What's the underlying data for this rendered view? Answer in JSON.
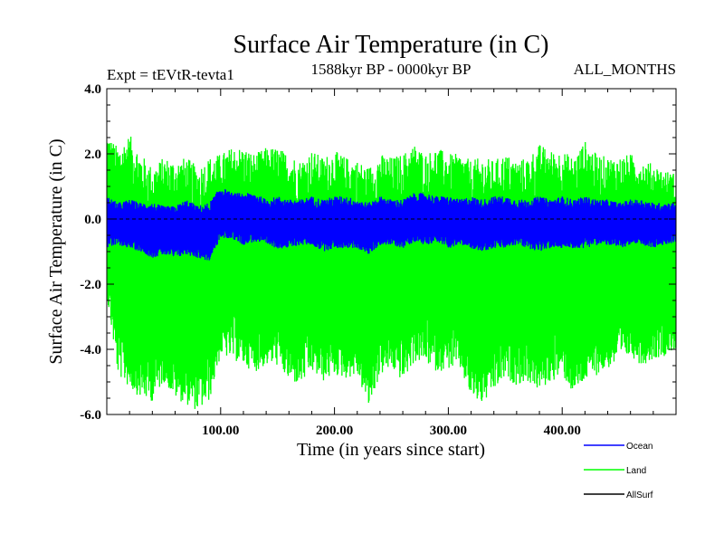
{
  "chart_data": {
    "type": "line",
    "title": "Surface Air Temperature (in C)",
    "expt_label": "Expt = tEVtR-tevta1",
    "period_label": "1588kyr BP - 0000kyr BP",
    "months_label": "ALL_MONTHS",
    "xlabel": "Time (in years since start)",
    "ylabel": "Surface Air Temperature (in C)",
    "xlim": [
      0,
      500
    ],
    "ylim": [
      -6.0,
      4.0
    ],
    "x_ticks": [
      100,
      200,
      300,
      400
    ],
    "x_tick_labels": [
      "100.00",
      "200.00",
      "300.00",
      "400.00"
    ],
    "y_ticks": [
      -6.0,
      -4.0,
      -2.0,
      0.0,
      2.0,
      4.0
    ],
    "y_tick_labels": [
      "-6.0",
      "-4.0",
      "-2.0",
      "0.0",
      "2.0",
      "4.0"
    ],
    "reference_line": 0.0,
    "series": [
      {
        "name": "Land",
        "color": "#00ff00",
        "values": [
          [
            0,
            -2.4,
            2.6
          ],
          [
            10,
            -4.8,
            2.2
          ],
          [
            20,
            -5.2,
            2.6
          ],
          [
            30,
            -5.5,
            2.0
          ],
          [
            40,
            -5.6,
            1.6
          ],
          [
            50,
            -5.0,
            1.9
          ],
          [
            60,
            -5.5,
            1.8
          ],
          [
            70,
            -5.7,
            1.9
          ],
          [
            80,
            -5.9,
            1.6
          ],
          [
            90,
            -5.6,
            1.9
          ],
          [
            100,
            -4.2,
            2.0
          ],
          [
            110,
            -4.3,
            2.2
          ],
          [
            120,
            -4.5,
            2.2
          ],
          [
            130,
            -4.7,
            2.0
          ],
          [
            140,
            -4.5,
            2.2
          ],
          [
            150,
            -4.5,
            2.2
          ],
          [
            160,
            -5.0,
            2.0
          ],
          [
            170,
            -5.1,
            1.8
          ],
          [
            180,
            -4.7,
            2.1
          ],
          [
            190,
            -5.0,
            1.9
          ],
          [
            200,
            -4.8,
            2.1
          ],
          [
            210,
            -4.9,
            1.9
          ],
          [
            220,
            -4.8,
            1.8
          ],
          [
            230,
            -5.8,
            1.6
          ],
          [
            240,
            -4.8,
            2.0
          ],
          [
            250,
            -4.6,
            1.9
          ],
          [
            260,
            -5.0,
            2.0
          ],
          [
            270,
            -4.4,
            2.3
          ],
          [
            280,
            -4.4,
            2.0
          ],
          [
            290,
            -4.7,
            2.2
          ],
          [
            300,
            -4.6,
            2.0
          ],
          [
            310,
            -4.6,
            2.0
          ],
          [
            320,
            -5.5,
            1.8
          ],
          [
            330,
            -5.7,
            1.9
          ],
          [
            340,
            -5.3,
            1.8
          ],
          [
            350,
            -4.9,
            2.0
          ],
          [
            360,
            -5.1,
            1.8
          ],
          [
            370,
            -5.0,
            1.9
          ],
          [
            380,
            -5.3,
            2.3
          ],
          [
            390,
            -5.0,
            2.1
          ],
          [
            400,
            -4.8,
            2.1
          ],
          [
            410,
            -5.4,
            1.9
          ],
          [
            420,
            -5.0,
            2.4
          ],
          [
            430,
            -4.8,
            2.0
          ],
          [
            440,
            -4.6,
            1.9
          ],
          [
            450,
            -4.4,
            1.9
          ],
          [
            460,
            -4.2,
            2.0
          ],
          [
            470,
            -4.5,
            1.8
          ],
          [
            480,
            -4.3,
            1.7
          ],
          [
            490,
            -4.2,
            1.5
          ],
          [
            500,
            -4.0,
            1.4
          ]
        ]
      },
      {
        "name": "Ocean",
        "color": "#0000ff",
        "values": [
          [
            0,
            -0.9,
            0.7
          ],
          [
            10,
            -0.8,
            0.5
          ],
          [
            20,
            -0.9,
            0.6
          ],
          [
            30,
            -1.0,
            0.5
          ],
          [
            40,
            -1.2,
            0.5
          ],
          [
            50,
            -1.1,
            0.4
          ],
          [
            60,
            -1.2,
            0.4
          ],
          [
            70,
            -1.1,
            0.6
          ],
          [
            80,
            -1.2,
            0.4
          ],
          [
            90,
            -1.3,
            0.5
          ],
          [
            100,
            -0.6,
            1.0
          ],
          [
            110,
            -0.6,
            0.8
          ],
          [
            120,
            -0.8,
            0.8
          ],
          [
            130,
            -0.7,
            0.8
          ],
          [
            140,
            -0.8,
            0.6
          ],
          [
            150,
            -0.9,
            0.7
          ],
          [
            160,
            -0.9,
            0.6
          ],
          [
            170,
            -0.8,
            0.6
          ],
          [
            180,
            -0.8,
            0.7
          ],
          [
            190,
            -1.0,
            0.6
          ],
          [
            200,
            -0.9,
            0.7
          ],
          [
            210,
            -0.9,
            0.7
          ],
          [
            220,
            -0.9,
            0.6
          ],
          [
            230,
            -1.1,
            0.5
          ],
          [
            240,
            -0.8,
            0.7
          ],
          [
            250,
            -0.8,
            0.6
          ],
          [
            260,
            -0.9,
            0.6
          ],
          [
            270,
            -0.7,
            0.8
          ],
          [
            280,
            -0.8,
            0.8
          ],
          [
            290,
            -0.7,
            0.7
          ],
          [
            300,
            -0.9,
            0.7
          ],
          [
            310,
            -0.8,
            0.6
          ],
          [
            320,
            -0.9,
            0.7
          ],
          [
            330,
            -1.0,
            0.6
          ],
          [
            340,
            -0.9,
            0.7
          ],
          [
            350,
            -0.9,
            0.7
          ],
          [
            360,
            -0.8,
            0.6
          ],
          [
            370,
            -0.9,
            0.6
          ],
          [
            380,
            -1.0,
            0.7
          ],
          [
            390,
            -0.9,
            0.6
          ],
          [
            400,
            -0.9,
            0.7
          ],
          [
            410,
            -0.9,
            0.6
          ],
          [
            420,
            -0.9,
            0.7
          ],
          [
            430,
            -0.8,
            0.6
          ],
          [
            440,
            -0.8,
            0.6
          ],
          [
            450,
            -0.9,
            0.5
          ],
          [
            460,
            -0.8,
            0.6
          ],
          [
            470,
            -0.8,
            0.6
          ],
          [
            480,
            -0.9,
            0.5
          ],
          [
            490,
            -0.8,
            0.5
          ],
          [
            500,
            -0.7,
            0.5
          ]
        ]
      },
      {
        "name": "AllSurf",
        "color": "#000000",
        "values": []
      }
    ],
    "legend": [
      {
        "label": "Ocean",
        "color": "#0000ff"
      },
      {
        "label": "Land",
        "color": "#00ff00"
      },
      {
        "label": "AllSurf",
        "color": "#000000"
      }
    ],
    "legend_position": "bottom-right"
  }
}
